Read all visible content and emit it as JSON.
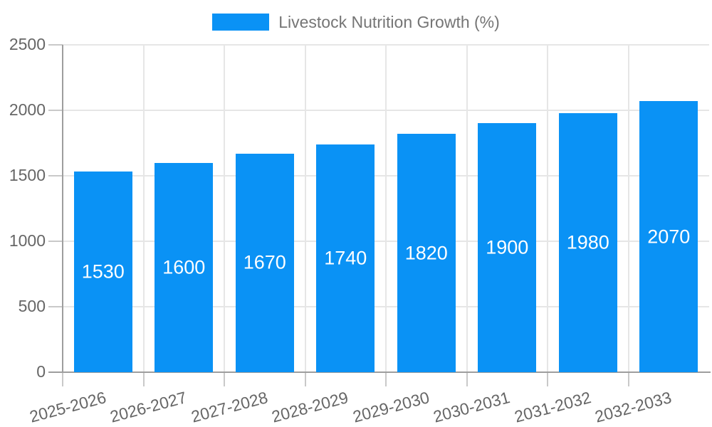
{
  "legend": {
    "label": "Livestock Nutrition Growth (%)"
  },
  "chart_data": {
    "type": "bar",
    "title": "",
    "legend": "Livestock Nutrition Growth (%)",
    "legend_position": "top-center",
    "categories": [
      "2025-2026",
      "2026-2027",
      "2027-2028",
      "2028-2029",
      "2029-2030",
      "2030-2031",
      "2031-2032",
      "2032-2033"
    ],
    "values": [
      1530,
      1600,
      1670,
      1740,
      1820,
      1900,
      1980,
      2070
    ],
    "value_labels": [
      "1530",
      "1600",
      "1670",
      "1740",
      "1820",
      "1900",
      "1980",
      "2070"
    ],
    "xlabel": "",
    "ylabel": "",
    "ylim": [
      0,
      2500
    ],
    "y_ticks": [
      0,
      500,
      1000,
      1500,
      2000,
      2500
    ],
    "grid": "on",
    "x_label_rotation_deg": -15
  },
  "colors": {
    "bar": "#0a92f5",
    "grid": "#e6e6e6",
    "axis": "#9e9e9e",
    "tick": "#c9c9c9",
    "axis_label": "#666666",
    "legend_text": "#757575",
    "annotation": "#ffffff",
    "background": "#ffffff"
  }
}
